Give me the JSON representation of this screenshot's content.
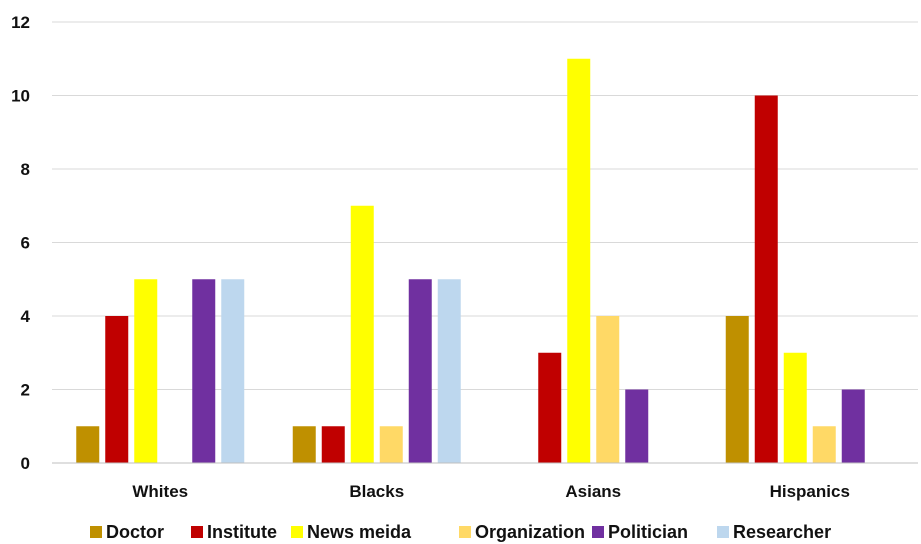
{
  "chart_data": {
    "type": "bar",
    "title": "",
    "xlabel": "",
    "ylabel": "",
    "ylim": [
      0,
      12
    ],
    "yticks": [
      "0",
      "2",
      "4",
      "6",
      "8",
      "10",
      "12"
    ],
    "grid": true,
    "legend_position": "bottom",
    "categories": [
      "Whites",
      "Blacks",
      "Asians",
      "Hispanics"
    ],
    "series": [
      {
        "name": "Doctor",
        "color": "#bf9000",
        "values": [
          1,
          1,
          0,
          4
        ]
      },
      {
        "name": "Institute",
        "color": "#c00000",
        "values": [
          4,
          1,
          3,
          10
        ]
      },
      {
        "name": "News meida",
        "color": "#ffff00",
        "values": [
          5,
          7,
          11,
          3
        ]
      },
      {
        "name": "Organization",
        "color": "#ffd966",
        "values": [
          0,
          1,
          4,
          1
        ]
      },
      {
        "name": "Politician",
        "color": "#7030a0",
        "values": [
          5,
          5,
          2,
          2
        ]
      },
      {
        "name": "Researcher",
        "color": "#bdd7ee",
        "values": [
          5,
          5,
          0,
          0
        ]
      }
    ]
  }
}
